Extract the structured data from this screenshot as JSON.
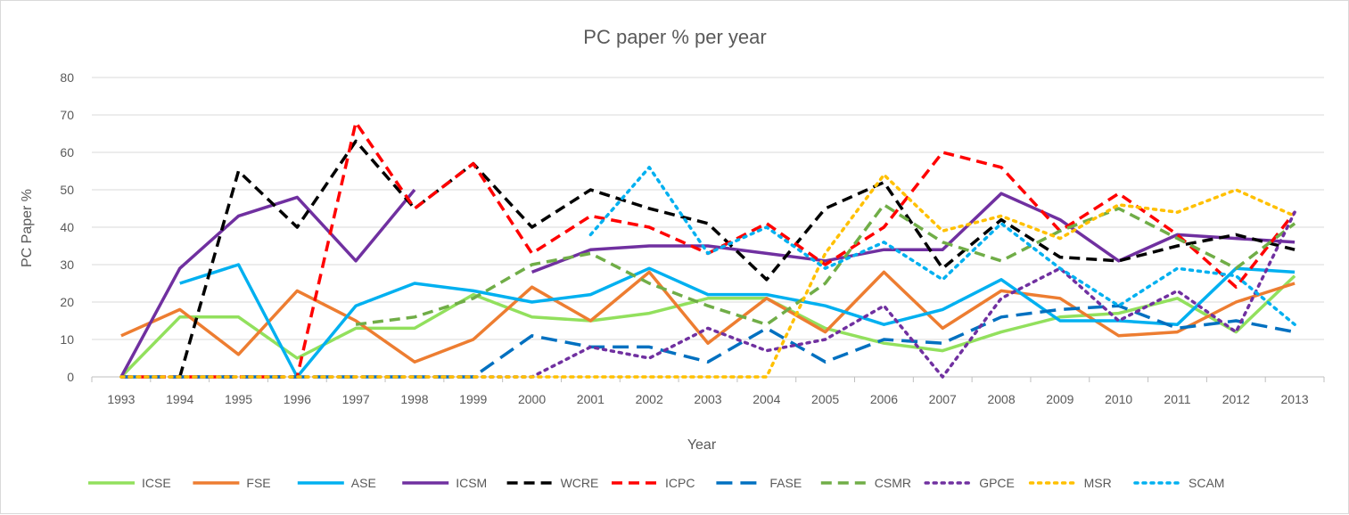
{
  "chart_data": {
    "type": "line",
    "title": "PC paper % per year",
    "xlabel": "Year",
    "ylabel": "PC Paper %",
    "ylim": [
      0,
      80
    ],
    "yticks": [
      0,
      10,
      20,
      30,
      40,
      50,
      60,
      70,
      80
    ],
    "grid": true,
    "legend_position": "bottom",
    "categories": [
      "1993",
      "1994",
      "1995",
      "1996",
      "1997",
      "1998",
      "1999",
      "2000",
      "2001",
      "2002",
      "2003",
      "2004",
      "2005",
      "2006",
      "2007",
      "2008",
      "2009",
      "2010",
      "2011",
      "2012",
      "2013"
    ],
    "series": [
      {
        "name": "ICSE",
        "color": "#92e05d",
        "style": "solid",
        "values": [
          0,
          16,
          16,
          5,
          13,
          13,
          22,
          16,
          15,
          17,
          21,
          21,
          13,
          9,
          7,
          12,
          16,
          17,
          21,
          12,
          27
        ]
      },
      {
        "name": "FSE",
        "color": "#ed7d31",
        "style": "solid",
        "values": [
          11,
          18,
          6,
          23,
          15,
          4,
          10,
          24,
          15,
          28,
          9,
          21,
          12,
          28,
          13,
          23,
          21,
          11,
          12,
          20,
          25
        ]
      },
      {
        "name": "ASE",
        "color": "#00b0f0",
        "style": "solid",
        "values": [
          null,
          25,
          30,
          0,
          19,
          25,
          23,
          20,
          22,
          29,
          22,
          22,
          19,
          14,
          18,
          26,
          15,
          15,
          14,
          29,
          28
        ]
      },
      {
        "name": "ICSM",
        "color": "#7030a0",
        "style": "solid",
        "values": [
          0,
          29,
          43,
          48,
          31,
          50,
          null,
          28,
          34,
          35,
          35,
          33,
          31,
          34,
          34,
          49,
          42,
          31,
          38,
          37,
          36
        ]
      },
      {
        "name": "WCRE",
        "color": "#000000",
        "style": "dash",
        "values": [
          null,
          0,
          55,
          40,
          63,
          45,
          57,
          40,
          50,
          45,
          41,
          26,
          45,
          52,
          29,
          42,
          32,
          31,
          35,
          38,
          34
        ]
      },
      {
        "name": "ICPC",
        "color": "#ff0000",
        "style": "dash",
        "values": [
          0,
          0,
          0,
          0,
          68,
          45,
          57,
          33,
          43,
          40,
          33,
          41,
          30,
          40,
          60,
          56,
          39,
          49,
          38,
          24,
          44
        ]
      },
      {
        "name": "FASE",
        "color": "#0070c0",
        "style": "longdash",
        "values": [
          0,
          0,
          0,
          0,
          0,
          0,
          0,
          11,
          8,
          8,
          4,
          13,
          4,
          10,
          9,
          16,
          18,
          19,
          13,
          15,
          12
        ]
      },
      {
        "name": "CSMR",
        "color": "#70ad47",
        "style": "dash",
        "values": [
          null,
          null,
          null,
          null,
          14,
          16,
          21,
          30,
          33,
          25,
          19,
          14,
          25,
          46,
          36,
          31,
          39,
          45,
          37,
          29,
          41
        ]
      },
      {
        "name": "GPCE",
        "color": "#7030a0",
        "style": "dot",
        "values": [
          0,
          0,
          0,
          0,
          0,
          0,
          0,
          0,
          8,
          5,
          13,
          7,
          10,
          19,
          0,
          21,
          29,
          15,
          23,
          12,
          44
        ]
      },
      {
        "name": "MSR",
        "color": "#ffc000",
        "style": "dot",
        "values": [
          0,
          0,
          0,
          0,
          0,
          0,
          0,
          0,
          0,
          0,
          0,
          0,
          33,
          54,
          39,
          43,
          37,
          46,
          44,
          50,
          43
        ]
      },
      {
        "name": "SCAM",
        "color": "#00b0f0",
        "style": "dot",
        "values": [
          null,
          null,
          null,
          null,
          null,
          null,
          null,
          null,
          38,
          56,
          33,
          40,
          29,
          36,
          26,
          41,
          29,
          19,
          29,
          27,
          14
        ]
      }
    ]
  }
}
